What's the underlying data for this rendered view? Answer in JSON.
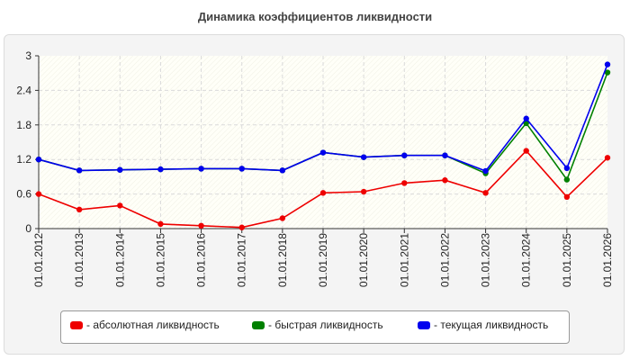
{
  "chart_data": {
    "type": "line",
    "title": "Динамика коэффициентов ликвидности",
    "xlabel": "",
    "ylabel": "",
    "categories": [
      "01.01.2012",
      "01.01.2013",
      "01.01.2014",
      "01.01.2015",
      "01.01.2016",
      "01.01.2017",
      "01.01.2018",
      "01.01.2019",
      "01.01.2020",
      "01.01.2021",
      "01.01.2022",
      "01.01.2023",
      "01.01.2024",
      "01.01.2025",
      "01.01.2026"
    ],
    "ylim": [
      0,
      3
    ],
    "yticks": [
      "0",
      "0.6",
      "1.2",
      "1.8",
      "2.4",
      "3"
    ],
    "grid": true,
    "legend_position": "bottom",
    "series": [
      {
        "name": "- абсолютная ликвидность",
        "color": "#ee0000",
        "values": [
          0.6,
          0.33,
          0.4,
          0.08,
          0.05,
          0.02,
          0.18,
          0.62,
          0.64,
          0.79,
          0.84,
          0.62,
          1.35,
          0.55,
          1.23
        ]
      },
      {
        "name": "- быстрая ликвидность",
        "color": "#008000",
        "values": [
          1.2,
          1.01,
          1.02,
          1.03,
          1.04,
          1.04,
          1.01,
          1.32,
          1.24,
          1.27,
          1.27,
          0.96,
          1.83,
          0.85,
          2.71
        ]
      },
      {
        "name": "- текущая ликвидность",
        "color": "#0000ee",
        "values": [
          1.2,
          1.01,
          1.02,
          1.03,
          1.04,
          1.04,
          1.01,
          1.32,
          1.24,
          1.27,
          1.27,
          1.0,
          1.91,
          1.05,
          2.85
        ]
      }
    ]
  }
}
